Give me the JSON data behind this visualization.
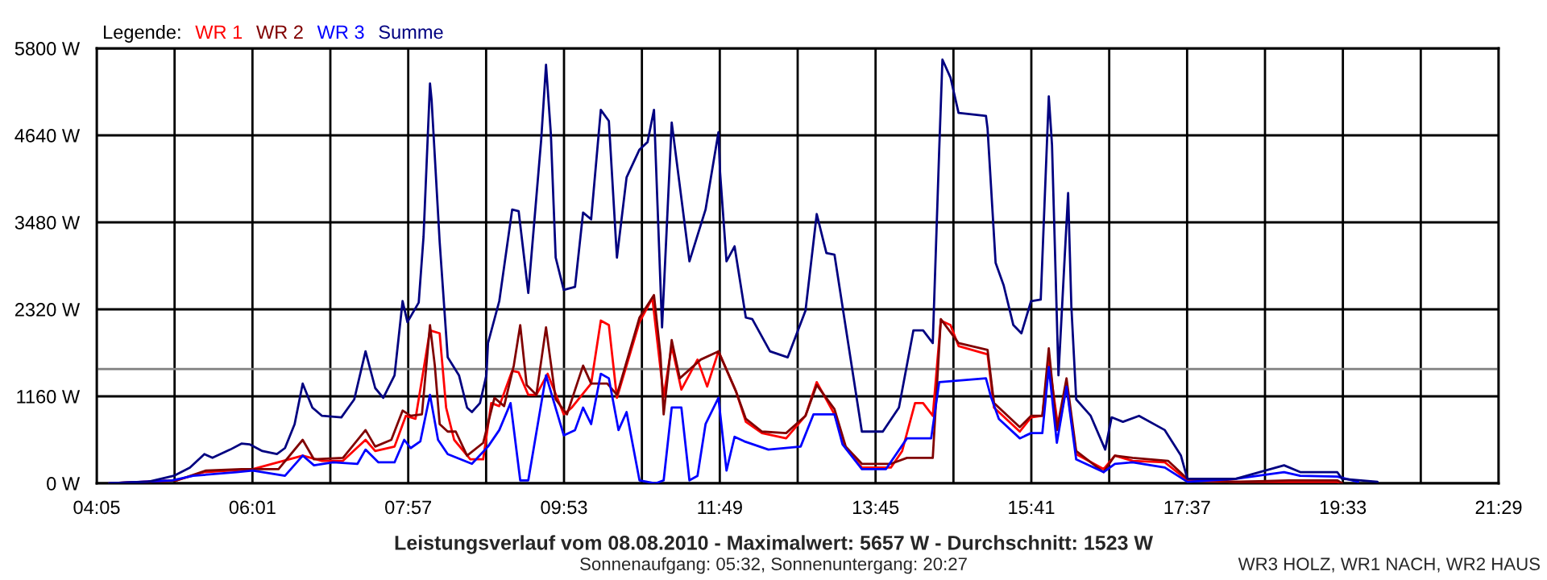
{
  "chart_data": {
    "type": "line",
    "title": "Leistungsverlauf vom 08.08.2010 - Maximalwert: 5657 W - Durchschnitt: 1523 W",
    "subtitle": "Sonnenaufgang: 05:32, Sonnenuntergang: 20:27",
    "annotations": [
      "WR3 HOLZ, WR1 NACH, WR2 HAUS"
    ],
    "legend_title": "Legende:",
    "legend": "top left",
    "grid": true,
    "xlim": [
      4.0833,
      21.4833
    ],
    "xticks": [
      {
        "value": 4.0833,
        "label": "04:05"
      },
      {
        "value": 5.05,
        "label": null
      },
      {
        "value": 6.0167,
        "label": "06:01"
      },
      {
        "value": 6.9833,
        "label": null
      },
      {
        "value": 7.95,
        "label": "07:57"
      },
      {
        "value": 8.9167,
        "label": null
      },
      {
        "value": 9.8833,
        "label": "09:53"
      },
      {
        "value": 10.85,
        "label": null
      },
      {
        "value": 11.8167,
        "label": "11:49"
      },
      {
        "value": 12.7833,
        "label": null
      },
      {
        "value": 13.75,
        "label": "13:45"
      },
      {
        "value": 14.7167,
        "label": null
      },
      {
        "value": 15.6833,
        "label": "15:41"
      },
      {
        "value": 16.65,
        "label": null
      },
      {
        "value": 17.6167,
        "label": "17:37"
      },
      {
        "value": 18.5833,
        "label": null
      },
      {
        "value": 19.55,
        "label": "19:33"
      },
      {
        "value": 20.5167,
        "label": null
      },
      {
        "value": 21.4833,
        "label": "21:29"
      }
    ],
    "ylim": [
      0,
      5800
    ],
    "yticks": [
      {
        "value": 0,
        "label": "0 W"
      },
      {
        "value": 1160,
        "label": "1160 W"
      },
      {
        "value": 2320,
        "label": "2320 W"
      },
      {
        "value": 3480,
        "label": "3480 W"
      },
      {
        "value": 4640,
        "label": "4640 W"
      },
      {
        "value": 5800,
        "label": "5800 W"
      }
    ],
    "ref_lines": [
      {
        "axis": "y",
        "value": 1523,
        "color": "#808080"
      }
    ],
    "series": [
      {
        "name": "WR 1",
        "color": "#ff0000",
        "x": [
          4.24,
          5.08,
          5.42,
          6.02,
          6.42,
          6.64,
          6.88,
          7.14,
          7.42,
          7.54,
          7.78,
          7.92,
          8.04,
          8.22,
          8.34,
          8.42,
          8.52,
          8.72,
          8.88,
          8.98,
          9.08,
          9.24,
          9.32,
          9.44,
          9.54,
          9.68,
          9.88,
          9.98,
          10.22,
          10.34,
          10.44,
          10.54,
          10.82,
          10.98,
          11.12,
          11.22,
          11.34,
          11.54,
          11.66,
          11.8,
          12.02,
          12.14,
          12.34,
          12.64,
          12.88,
          13.02,
          13.24,
          13.38,
          13.58,
          13.94,
          14.08,
          14.24,
          14.34,
          14.46,
          14.56,
          14.68,
          14.78,
          15.14,
          15.22,
          15.54,
          15.68,
          15.82,
          15.9,
          16.02,
          16.12,
          16.24,
          16.58,
          16.72,
          16.94,
          17.34,
          17.62,
          18.22,
          18.88,
          19.48,
          19.54
        ],
        "values": [
          0,
          40,
          150,
          190,
          null,
          370,
          300,
          300,
          580,
          430,
          490,
          900,
          860,
          2040,
          2000,
          1010,
          580,
          320,
          320,
          1070,
          1030,
          1500,
          1480,
          1180,
          1180,
          1460,
          920,
          1010,
          1330,
          2170,
          2110,
          1140,
          2150,
          2470,
          1160,
          1830,
          1250,
          1650,
          1290,
          1760,
          1220,
          820,
          670,
          600,
          900,
          1350,
          920,
          470,
          210,
          210,
          430,
          1070,
          1070,
          900,
          2170,
          2110,
          1830,
          1720,
          1010,
          690,
          880,
          900,
          1650,
          710,
          1310,
          390,
          190,
          370,
          300,
          280,
          40,
          20,
          20,
          20,
          0
        ]
      },
      {
        "name": "WR 2",
        "color": "#800000",
        "x": [
          4.24,
          5.08,
          5.44,
          5.88,
          6.34,
          6.64,
          6.78,
          7.14,
          7.42,
          7.54,
          7.74,
          7.88,
          7.98,
          8.12,
          8.22,
          8.28,
          8.34,
          8.44,
          8.54,
          8.68,
          8.88,
          9.02,
          9.14,
          9.26,
          9.34,
          9.42,
          9.54,
          9.66,
          9.78,
          9.92,
          10.12,
          10.22,
          10.42,
          10.54,
          10.82,
          11.0,
          11.08,
          11.12,
          11.22,
          11.32,
          11.58,
          11.8,
          12.02,
          12.14,
          12.34,
          12.64,
          12.88,
          13.02,
          13.24,
          13.38,
          13.58,
          13.94,
          14.14,
          14.46,
          14.56,
          14.78,
          15.14,
          15.22,
          15.54,
          15.68,
          15.82,
          15.9,
          16.0,
          16.12,
          16.24,
          16.58,
          16.72,
          16.94,
          17.38,
          17.62,
          18.22,
          18.88,
          19.48,
          19.54
        ],
        "values": [
          0,
          40,
          170,
          190,
          190,
          580,
          320,
          340,
          710,
          490,
          580,
          970,
          900,
          920,
          2110,
          1570,
          790,
          690,
          690,
          370,
          540,
          1140,
          1030,
          1570,
          2110,
          1310,
          1180,
          2080,
          1120,
          920,
          1570,
          1330,
          1330,
          1180,
          2210,
          2510,
          1720,
          920,
          1910,
          1400,
          1650,
          1760,
          1220,
          860,
          690,
          670,
          900,
          1310,
          990,
          490,
          260,
          260,
          340,
          340,
          2190,
          1870,
          1780,
          1070,
          750,
          900,
          900,
          1800,
          710,
          1400,
          430,
          150,
          370,
          340,
          300,
          60,
          20,
          40,
          40,
          0
        ]
      },
      {
        "name": "WR 3",
        "color": "#0000ff",
        "x": [
          4.24,
          5.02,
          5.28,
          5.82,
          6.02,
          6.42,
          6.64,
          6.78,
          7.02,
          7.32,
          7.42,
          7.58,
          7.78,
          7.9,
          7.98,
          8.1,
          8.22,
          8.32,
          8.44,
          8.74,
          8.94,
          9.08,
          9.22,
          9.34,
          9.44,
          9.66,
          9.88,
          10.02,
          10.12,
          10.22,
          10.34,
          10.44,
          10.56,
          10.66,
          10.82,
          11.02,
          11.12,
          11.22,
          11.34,
          11.44,
          11.54,
          11.64,
          11.8,
          11.9,
          12.0,
          12.12,
          12.42,
          12.82,
          12.98,
          13.24,
          13.34,
          13.58,
          13.88,
          14.14,
          14.44,
          14.54,
          15.12,
          15.18,
          15.28,
          15.54,
          15.68,
          15.82,
          15.9,
          16.0,
          16.12,
          16.24,
          16.58,
          16.72,
          16.94,
          17.34,
          17.62,
          18.22,
          18.82,
          19.02,
          19.48,
          19.74
        ],
        "values": [
          0,
          40,
          100,
          150,
          170,
          100,
          370,
          240,
          280,
          260,
          450,
          280,
          280,
          580,
          470,
          560,
          1180,
          580,
          390,
          260,
          490,
          710,
          1070,
          40,
          40,
          1440,
          640,
          710,
          1010,
          790,
          1460,
          1400,
          710,
          950,
          40,
          0,
          40,
          1010,
          1010,
          40,
          100,
          790,
          1140,
          170,
          620,
          560,
          450,
          490,
          920,
          920,
          520,
          190,
          190,
          600,
          600,
          1350,
          1400,
          1160,
          860,
          600,
          670,
          670,
          1550,
          540,
          1290,
          320,
          150,
          260,
          280,
          210,
          20,
          60,
          150,
          100,
          90,
          20
        ]
      },
      {
        "name": "Summe",
        "color": "#000080",
        "x": [
          4.24,
          4.72,
          5.04,
          5.24,
          5.42,
          5.52,
          5.74,
          5.88,
          5.98,
          6.14,
          6.32,
          6.42,
          6.54,
          6.64,
          6.76,
          6.88,
          7.12,
          7.28,
          7.42,
          7.54,
          7.64,
          7.78,
          7.88,
          7.94,
          8.08,
          8.14,
          8.22,
          8.24,
          8.34,
          8.44,
          8.58,
          8.68,
          8.74,
          8.84,
          8.92,
          8.94,
          9.08,
          9.24,
          9.32,
          9.44,
          9.6,
          9.66,
          9.72,
          9.78,
          9.88,
          10.02,
          10.12,
          10.22,
          10.34,
          10.44,
          10.54,
          10.66,
          10.82,
          10.92,
          11.0,
          11.1,
          11.22,
          11.44,
          11.64,
          11.8,
          11.82,
          11.9,
          12.0,
          12.14,
          12.22,
          12.44,
          12.66,
          12.88,
          13.02,
          13.14,
          13.24,
          13.58,
          13.84,
          14.04,
          14.22,
          14.34,
          14.46,
          14.54,
          14.58,
          14.68,
          14.78,
          15.12,
          15.14,
          15.24,
          15.34,
          15.46,
          15.56,
          15.68,
          15.8,
          15.86,
          15.9,
          15.94,
          16.02,
          16.1,
          16.14,
          16.18,
          16.24,
          16.42,
          16.6,
          16.68,
          16.82,
          17.02,
          17.34,
          17.54,
          17.62,
          17.82,
          18.22,
          18.82,
          19.02,
          19.48,
          19.54,
          19.98
        ],
        "values": [
          0,
          20,
          100,
          210,
          390,
          340,
          450,
          530,
          520,
          430,
          390,
          470,
          790,
          1330,
          1010,
          900,
          880,
          1120,
          1760,
          1270,
          1140,
          1440,
          2430,
          2150,
          2410,
          3290,
          5330,
          5110,
          3220,
          1680,
          1440,
          1010,
          950,
          1070,
          1440,
          1870,
          2430,
          3650,
          3630,
          2540,
          4580,
          5580,
          4660,
          3010,
          2580,
          2620,
          3610,
          3520,
          4980,
          4830,
          3010,
          4080,
          4450,
          4550,
          4980,
          2080,
          4810,
          2960,
          3650,
          4680,
          4150,
          2960,
          3160,
          2210,
          2190,
          1760,
          1680,
          2300,
          3590,
          3070,
          3050,
          690,
          690,
          1010,
          2040,
          2040,
          1870,
          4450,
          5650,
          5410,
          4940,
          4900,
          4730,
          2940,
          2640,
          2110,
          2000,
          2430,
          2450,
          4080,
          5160,
          4510,
          1440,
          3070,
          3870,
          2360,
          1120,
          900,
          450,
          880,
          820,
          900,
          710,
          370,
          60,
          60,
          60,
          240,
          150,
          150,
          60,
          20
        ]
      }
    ]
  }
}
